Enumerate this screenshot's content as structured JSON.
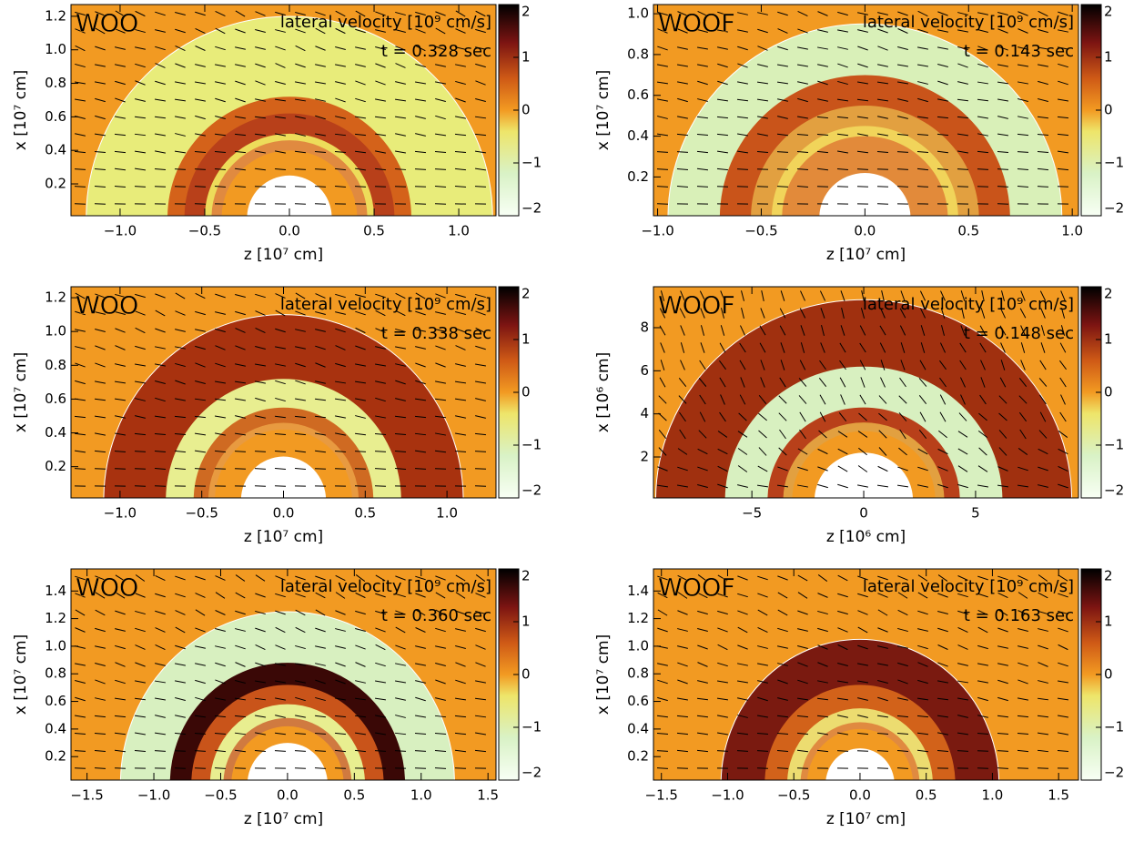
{
  "chart_data": [
    {
      "type": "heatmap",
      "title": "WOO",
      "subtitle": "lateral velocity [10⁹ cm/s]",
      "annotation": "t = 0.328 sec",
      "xlabel": "z [10⁷ cm]",
      "ylabel": "x [10⁷ cm]",
      "xlim": [
        -1.29,
        1.22
      ],
      "ylim": [
        0.01,
        1.27
      ],
      "xticks": [
        {
          "value": -1,
          "label": "−1.0"
        },
        {
          "value": -0.5,
          "label": "−0.5"
        },
        {
          "value": 0,
          "label": "0.0"
        },
        0.5,
        {
          "value": 1,
          "label": "1.0"
        }
      ],
      "yticks": [
        0.2,
        0.4,
        0.6,
        0.8,
        {
          "value": 1,
          "label": "1.0"
        },
        1.2
      ],
      "colorbar_lim": [
        -2,
        2
      ],
      "colorbar_ticks": [
        {
          "value": -2,
          "label": "−2"
        },
        {
          "value": -1,
          "label": "−1"
        },
        0,
        1,
        2
      ]
    },
    {
      "type": "heatmap",
      "title": "WOOF",
      "subtitle": "lateral velocity [10⁹ cm/s]",
      "annotation": "t = 0.143 sec",
      "xlabel": "z [10⁷ cm]",
      "ylabel": "x [10⁷ cm]",
      "xlim": [
        -1.02,
        1.03
      ],
      "ylim": [
        0.01,
        1.045
      ],
      "xticks": [
        {
          "value": -1,
          "label": "−1.0"
        },
        {
          "value": -0.5,
          "label": "−0.5"
        },
        {
          "value": 0,
          "label": "0.0"
        },
        0.5,
        {
          "value": 1,
          "label": "1.0"
        }
      ],
      "yticks": [
        0.2,
        0.4,
        0.6,
        0.8,
        {
          "value": 1,
          "label": "1.0"
        }
      ],
      "colorbar_lim": [
        -2,
        2
      ],
      "colorbar_ticks": [
        {
          "value": -2,
          "label": "−2"
        },
        {
          "value": -1,
          "label": "−1"
        },
        0,
        1,
        2
      ]
    },
    {
      "type": "heatmap",
      "title": "WOO",
      "subtitle": "lateral velocity [10⁹ cm/s]",
      "annotation": "t = 0.338 sec",
      "xlabel": "z [10⁷ cm]",
      "ylabel": "x [10⁷ cm]",
      "xlim": [
        -1.3,
        1.3
      ],
      "ylim": [
        0.015,
        1.265
      ],
      "xticks": [
        {
          "value": -1,
          "label": "−1.0"
        },
        {
          "value": -0.5,
          "label": "−0.5"
        },
        {
          "value": 0,
          "label": "0.0"
        },
        0.5,
        {
          "value": 1,
          "label": "1.0"
        }
      ],
      "yticks": [
        0.2,
        0.4,
        0.6,
        0.8,
        {
          "value": 1,
          "label": "1.0"
        },
        1.2
      ],
      "colorbar_lim": [
        -2,
        2
      ],
      "colorbar_ticks": [
        {
          "value": -2,
          "label": "−2"
        },
        {
          "value": -1,
          "label": "−1"
        },
        0,
        1,
        2
      ]
    },
    {
      "type": "heatmap",
      "title": "WOOF",
      "subtitle": "lateral velocity [10⁹ cm/s]",
      "annotation": "t = 0.148 sec",
      "xlabel": "z [10⁶ cm]",
      "ylabel": "x [10⁶ cm]",
      "xlim": [
        -9.4,
        9.6
      ],
      "ylim": [
        0.1,
        9.9
      ],
      "xticks": [
        {
          "value": -5,
          "label": "−5"
        },
        0,
        5
      ],
      "yticks": [
        2,
        4,
        6,
        8
      ],
      "colorbar_lim": [
        -2,
        2
      ],
      "colorbar_ticks": [
        {
          "value": -2,
          "label": "−2"
        },
        {
          "value": -1,
          "label": "−1"
        },
        0,
        1,
        2
      ]
    },
    {
      "type": "heatmap",
      "title": "WOO",
      "subtitle": "lateral velocity [10⁹ cm/s]",
      "annotation": "t = 0.360 sec",
      "xlabel": "z [10⁷ cm]",
      "ylabel": "x [10⁷ cm]",
      "xlim": [
        -1.62,
        1.56
      ],
      "ylim": [
        0.03,
        1.56
      ],
      "xticks": [
        {
          "value": -1.5,
          "label": "−1.5"
        },
        {
          "value": -1,
          "label": "−1.0"
        },
        {
          "value": -0.5,
          "label": "−0.5"
        },
        {
          "value": 0,
          "label": "0.0"
        },
        0.5,
        {
          "value": 1,
          "label": "1.0"
        },
        1.5
      ],
      "yticks": [
        0.2,
        0.4,
        0.6,
        0.8,
        {
          "value": 1,
          "label": "1.0"
        },
        1.2,
        1.4
      ],
      "colorbar_lim": [
        -2,
        2
      ],
      "colorbar_ticks": [
        {
          "value": -2,
          "label": "−2"
        },
        {
          "value": -1,
          "label": "−1"
        },
        0,
        1,
        2
      ]
    },
    {
      "type": "heatmap",
      "title": "WOOF",
      "subtitle": "lateral velocity [10⁹ cm/s]",
      "annotation": "t = 0.163 sec",
      "xlabel": "z [10⁷ cm]",
      "ylabel": "x [10⁷ cm]",
      "xlim": [
        -1.56,
        1.65
      ],
      "ylim": [
        0.03,
        1.56
      ],
      "xticks": [
        {
          "value": -1.5,
          "label": "−1.5"
        },
        {
          "value": -1,
          "label": "−1.0"
        },
        {
          "value": -0.5,
          "label": "−0.5"
        },
        {
          "value": 0,
          "label": "0.0"
        },
        0.5,
        {
          "value": 1,
          "label": "1.0"
        },
        1.5
      ],
      "yticks": [
        0.2,
        0.4,
        0.6,
        0.8,
        {
          "value": 1,
          "label": "1.0"
        },
        1.2,
        1.4
      ],
      "colorbar_lim": [
        -2,
        2
      ],
      "colorbar_ticks": [
        {
          "value": -2,
          "label": "−2"
        },
        {
          "value": -1,
          "label": "−1"
        },
        0,
        1,
        2
      ]
    }
  ]
}
